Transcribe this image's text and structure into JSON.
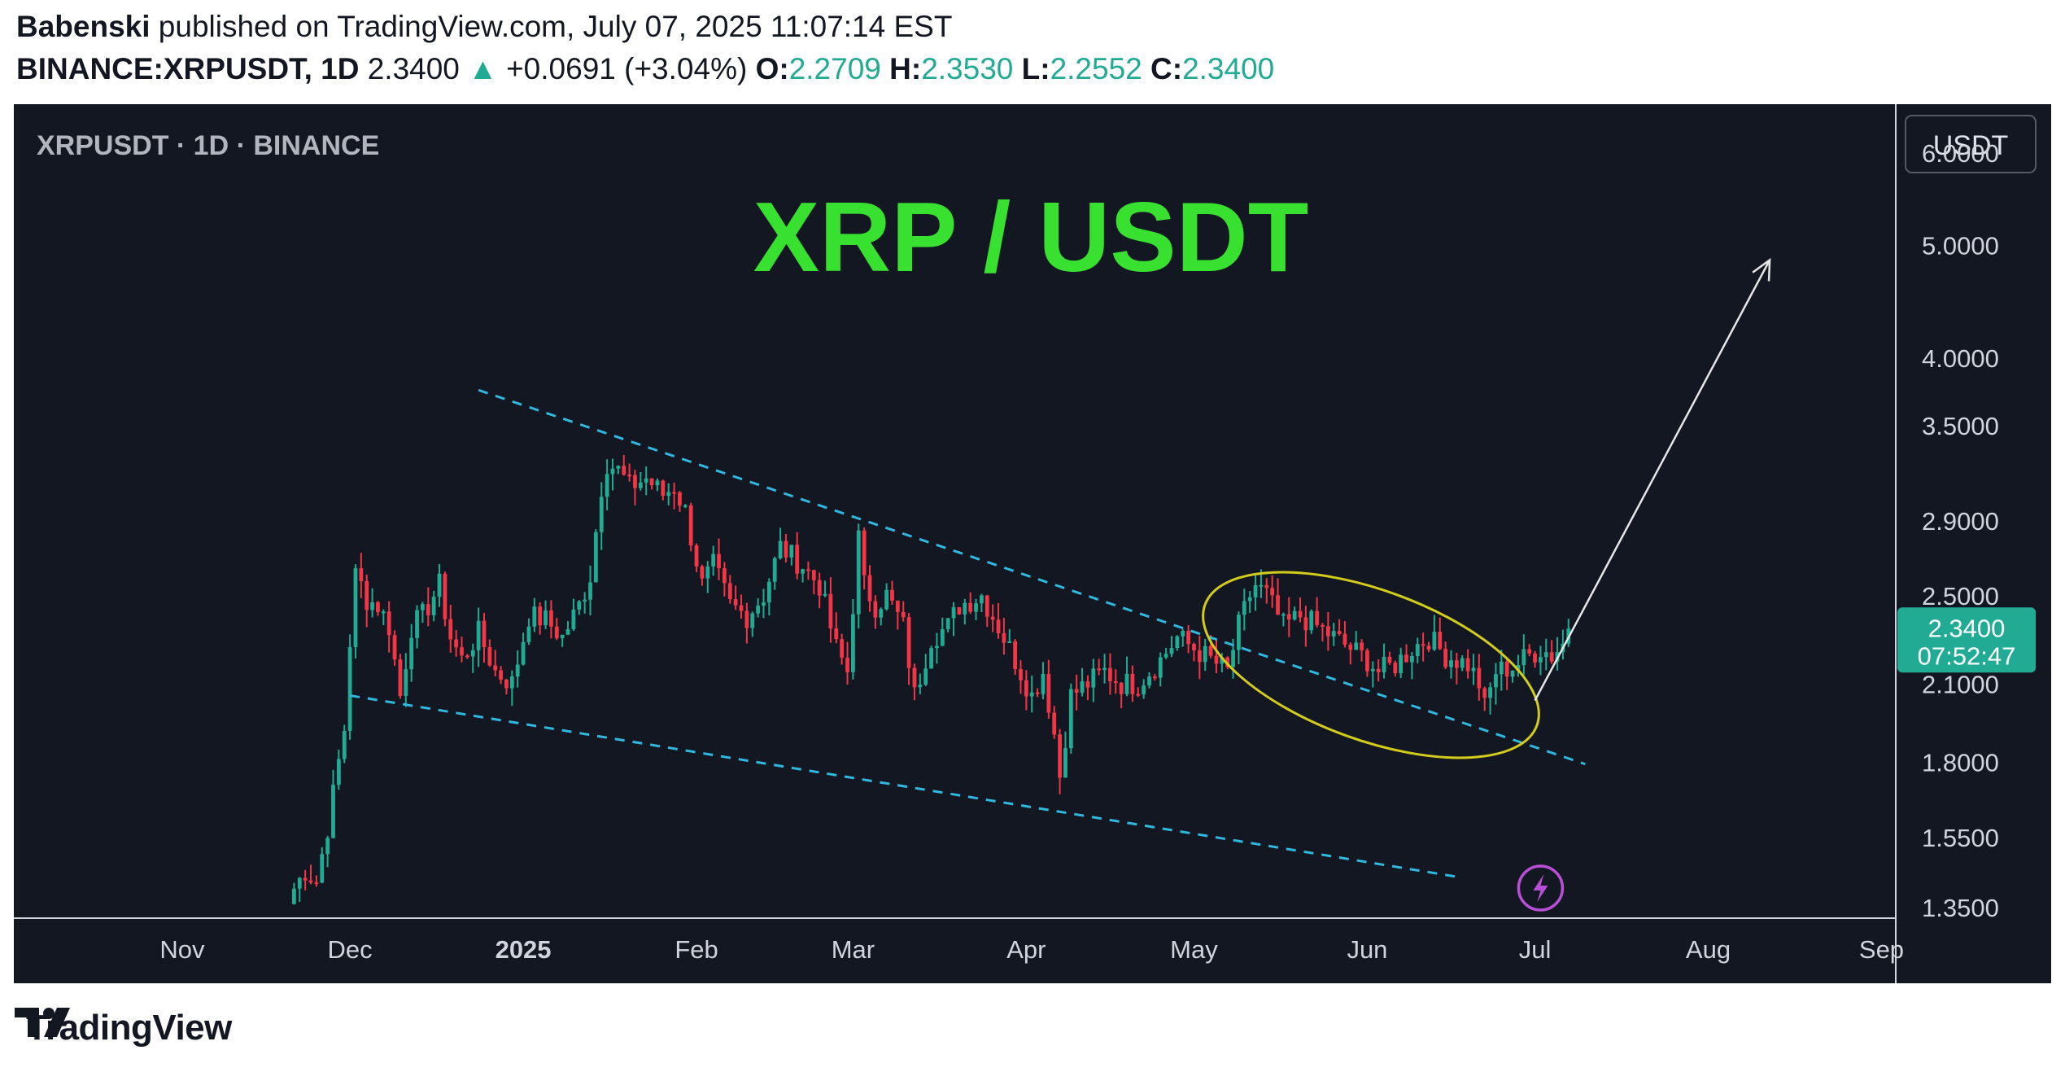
{
  "header": {
    "author": "Babenski",
    "published_text": " published on TradingView.com, July 07, 2025 11:07:14 EST",
    "symbol": "BINANCE:XRPUSDT, 1D",
    "last": "2.3400",
    "change": "+0.0691 (+3.04%)",
    "open_label": "O:",
    "open": "2.2709",
    "high_label": "H:",
    "high": "2.3530",
    "low_label": "L:",
    "low": "2.2552",
    "close_label": "C:",
    "close": "2.3400"
  },
  "chart_data": {
    "type": "candlestick",
    "legend": "XRPUSDT · 1D · BINANCE",
    "annotation_title": "XRP / USDT",
    "currency": "USDT",
    "y_scale": "log",
    "ylim": [
      1.32,
      6.6
    ],
    "y_ticks": [
      "6.0000",
      "5.0000",
      "4.0000",
      "3.5000",
      "2.9000",
      "2.5000",
      "2.1000",
      "1.8000",
      "1.5500",
      "1.3500"
    ],
    "x_ticks": [
      "Nov",
      "Dec",
      "2025",
      "Feb",
      "Mar",
      "Apr",
      "May",
      "Jun",
      "Jul",
      "Aug",
      "Sep"
    ],
    "last_price": "2.3400",
    "countdown": "07:52:47",
    "close_series": [
      {
        "date": "2024-11-21",
        "close": 1.4
      },
      {
        "date": "2024-11-23",
        "close": 1.45
      },
      {
        "date": "2024-11-25",
        "close": 1.42
      },
      {
        "date": "2024-11-27",
        "close": 1.58
      },
      {
        "date": "2024-11-29",
        "close": 1.8
      },
      {
        "date": "2024-11-30",
        "close": 1.92
      },
      {
        "date": "2024-12-01",
        "close": 2.28
      },
      {
        "date": "2024-12-02",
        "close": 2.6
      },
      {
        "date": "2024-12-03",
        "close": 2.55
      },
      {
        "date": "2024-12-04",
        "close": 2.48
      },
      {
        "date": "2024-12-06",
        "close": 2.45
      },
      {
        "date": "2024-12-08",
        "close": 2.35
      },
      {
        "date": "2024-12-10",
        "close": 2.05
      },
      {
        "date": "2024-12-12",
        "close": 2.35
      },
      {
        "date": "2024-12-14",
        "close": 2.4
      },
      {
        "date": "2024-12-17",
        "close": 2.55
      },
      {
        "date": "2024-12-19",
        "close": 2.3
      },
      {
        "date": "2024-12-21",
        "close": 2.2
      },
      {
        "date": "2024-12-24",
        "close": 2.32
      },
      {
        "date": "2024-12-27",
        "close": 2.15
      },
      {
        "date": "2024-12-30",
        "close": 2.1
      },
      {
        "date": "2025-01-02",
        "close": 2.4
      },
      {
        "date": "2025-01-05",
        "close": 2.38
      },
      {
        "date": "2025-01-08",
        "close": 2.3
      },
      {
        "date": "2025-01-11",
        "close": 2.45
      },
      {
        "date": "2025-01-13",
        "close": 2.6
      },
      {
        "date": "2025-01-15",
        "close": 3.1
      },
      {
        "date": "2025-01-16",
        "close": 3.25
      },
      {
        "date": "2025-01-18",
        "close": 3.2
      },
      {
        "date": "2025-01-20",
        "close": 3.1
      },
      {
        "date": "2025-01-23",
        "close": 3.15
      },
      {
        "date": "2025-01-26",
        "close": 3.05
      },
      {
        "date": "2025-01-28",
        "close": 3.1
      },
      {
        "date": "2025-01-30",
        "close": 2.95
      },
      {
        "date": "2025-02-02",
        "close": 2.55
      },
      {
        "date": "2025-02-04",
        "close": 2.65
      },
      {
        "date": "2025-02-07",
        "close": 2.45
      },
      {
        "date": "2025-02-10",
        "close": 2.4
      },
      {
        "date": "2025-02-13",
        "close": 2.5
      },
      {
        "date": "2025-02-16",
        "close": 2.75
      },
      {
        "date": "2025-02-18",
        "close": 2.7
      },
      {
        "date": "2025-02-20",
        "close": 2.65
      },
      {
        "date": "2025-02-23",
        "close": 2.55
      },
      {
        "date": "2025-02-26",
        "close": 2.25
      },
      {
        "date": "2025-02-28",
        "close": 2.15
      },
      {
        "date": "2025-03-02",
        "close": 2.8
      },
      {
        "date": "2025-03-03",
        "close": 2.55
      },
      {
        "date": "2025-03-05",
        "close": 2.45
      },
      {
        "date": "2025-03-07",
        "close": 2.5
      },
      {
        "date": "2025-03-10",
        "close": 2.35
      },
      {
        "date": "2025-03-12",
        "close": 2.05
      },
      {
        "date": "2025-03-15",
        "close": 2.3
      },
      {
        "date": "2025-03-18",
        "close": 2.35
      },
      {
        "date": "2025-03-20",
        "close": 2.45
      },
      {
        "date": "2025-03-24",
        "close": 2.5
      },
      {
        "date": "2025-03-27",
        "close": 2.35
      },
      {
        "date": "2025-03-30",
        "close": 2.2
      },
      {
        "date": "2025-04-02",
        "close": 2.05
      },
      {
        "date": "2025-04-04",
        "close": 2.15
      },
      {
        "date": "2025-04-06",
        "close": 1.9
      },
      {
        "date": "2025-04-07",
        "close": 1.75
      },
      {
        "date": "2025-04-09",
        "close": 2.05
      },
      {
        "date": "2025-04-12",
        "close": 2.1
      },
      {
        "date": "2025-04-15",
        "close": 2.15
      },
      {
        "date": "2025-04-18",
        "close": 2.1
      },
      {
        "date": "2025-04-21",
        "close": 2.1
      },
      {
        "date": "2025-04-25",
        "close": 2.2
      },
      {
        "date": "2025-04-28",
        "close": 2.3
      },
      {
        "date": "2025-05-01",
        "close": 2.25
      },
      {
        "date": "2025-05-04",
        "close": 2.2
      },
      {
        "date": "2025-05-07",
        "close": 2.15
      },
      {
        "date": "2025-05-09",
        "close": 2.35
      },
      {
        "date": "2025-05-11",
        "close": 2.5
      },
      {
        "date": "2025-05-12",
        "close": 2.55
      },
      {
        "date": "2025-05-14",
        "close": 2.5
      },
      {
        "date": "2025-05-17",
        "close": 2.35
      },
      {
        "date": "2025-05-20",
        "close": 2.4
      },
      {
        "date": "2025-05-23",
        "close": 2.35
      },
      {
        "date": "2025-05-26",
        "close": 2.3
      },
      {
        "date": "2025-05-29",
        "close": 2.25
      },
      {
        "date": "2025-06-01",
        "close": 2.2
      },
      {
        "date": "2025-06-03",
        "close": 2.15
      },
      {
        "date": "2025-06-06",
        "close": 2.18
      },
      {
        "date": "2025-06-09",
        "close": 2.25
      },
      {
        "date": "2025-06-12",
        "close": 2.3
      },
      {
        "date": "2025-06-15",
        "close": 2.22
      },
      {
        "date": "2025-06-17",
        "close": 2.2
      },
      {
        "date": "2025-06-19",
        "close": 2.18
      },
      {
        "date": "2025-06-21",
        "close": 2.1
      },
      {
        "date": "2025-06-22",
        "close": 2.0
      },
      {
        "date": "2025-06-24",
        "close": 2.15
      },
      {
        "date": "2025-06-27",
        "close": 2.17
      },
      {
        "date": "2025-06-30",
        "close": 2.22
      },
      {
        "date": "2025-07-02",
        "close": 2.25
      },
      {
        "date": "2025-07-04",
        "close": 2.22
      },
      {
        "date": "2025-07-06",
        "close": 2.27
      },
      {
        "date": "2025-07-07",
        "close": 2.34
      }
    ],
    "trendlines": [
      {
        "from": {
          "date": "2024-12-24",
          "price": 3.75
        },
        "to": {
          "date": "2025-07-10",
          "price": 1.79
        }
      },
      {
        "from": {
          "date": "2024-12-01",
          "price": 2.05
        },
        "to": {
          "date": "2025-06-18",
          "price": 1.43
        }
      }
    ],
    "arrow": {
      "from": {
        "date": "2025-07-01",
        "price": 2.03
      },
      "to": {
        "date": "2025-08-12",
        "price": 4.85
      }
    }
  },
  "footer": {
    "brand": "TradingView"
  },
  "colors": {
    "up": "#22ab94",
    "down": "#f23645",
    "trend": "#2fb8e0",
    "title": "#38e030",
    "ellipse": "#d4cc1b",
    "bg": "#131722"
  }
}
